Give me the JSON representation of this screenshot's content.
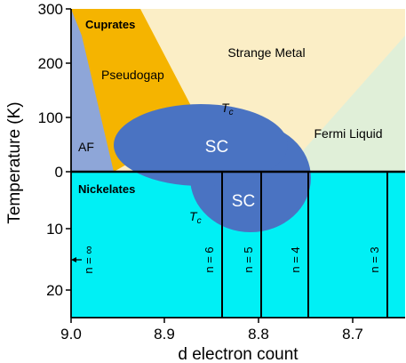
{
  "y_axis": {
    "label": "Temperature (K)",
    "top_ticks": [
      "300",
      "200",
      "100",
      "0"
    ],
    "bottom_ticks": [
      "10",
      "20"
    ]
  },
  "x_axis": {
    "label": "d electron count",
    "ticks": [
      "9.0",
      "8.9",
      "8.8",
      "8.7"
    ]
  },
  "regions": {
    "cuprates": "Cuprates",
    "pseudogap": "Pseudogap",
    "strange_metal": "Strange Metal",
    "fermi_liquid": "Fermi Liquid",
    "af": "AF",
    "sc_top": "SC",
    "sc_bottom": "SC",
    "nickelates": "Nickelates",
    "tc_top": "T",
    "tc_top_sub": "c",
    "tc_bottom": "T",
    "tc_bottom_sub": "c"
  },
  "layer_labels": {
    "n_inf": "n = ∞",
    "n6": "n = 6",
    "n5": "n = 5",
    "n4": "n = 4",
    "n3": "n = 3"
  },
  "colors": {
    "af": "#8ea6d8",
    "pseudogap": "#f5b400",
    "strange_metal": "#fbeec6",
    "fermi_liquid": "#e0efd8",
    "superconductor": "#4a73c2",
    "nickelate_bg": "#00f0f5",
    "axis": "#000000"
  }
}
